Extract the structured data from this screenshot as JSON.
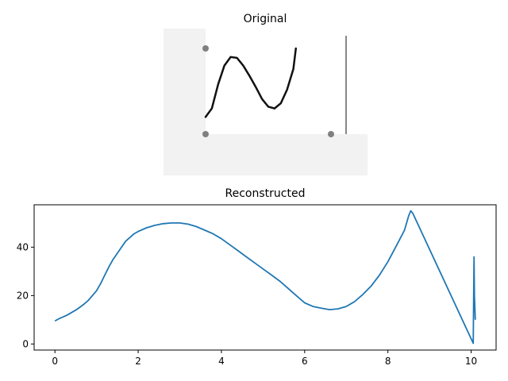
{
  "chart_data": [
    {
      "type": "image",
      "title": "Original",
      "points": [
        [
          0,
          0
        ],
        [
          1,
          0
        ],
        [
          0,
          1
        ]
      ],
      "point_color": "#808080",
      "curve": [
        [
          0.0,
          0.2
        ],
        [
          0.05,
          0.3
        ],
        [
          0.1,
          0.58
        ],
        [
          0.15,
          0.8
        ],
        [
          0.2,
          0.9
        ],
        [
          0.25,
          0.89
        ],
        [
          0.3,
          0.8
        ],
        [
          0.35,
          0.68
        ],
        [
          0.4,
          0.55
        ],
        [
          0.45,
          0.41
        ],
        [
          0.5,
          0.32
        ],
        [
          0.55,
          0.3
        ],
        [
          0.6,
          0.36
        ],
        [
          0.65,
          0.52
        ],
        [
          0.7,
          0.76
        ],
        [
          0.72,
          1.0
        ]
      ],
      "curve_color": "#111111",
      "background_color": "#f2f2f2"
    },
    {
      "type": "line",
      "title": "Reconstructed",
      "x": [
        0.0,
        0.1,
        0.2,
        0.3,
        0.4,
        0.5,
        0.6,
        0.7,
        0.8,
        0.9,
        1.0,
        1.1,
        1.2,
        1.3,
        1.4,
        1.5,
        1.6,
        1.7,
        1.8,
        1.9,
        2.0,
        2.2,
        2.4,
        2.6,
        2.8,
        3.0,
        3.2,
        3.4,
        3.6,
        3.8,
        4.0,
        4.2,
        4.4,
        4.6,
        4.8,
        5.0,
        5.2,
        5.4,
        5.6,
        5.8,
        6.0,
        6.2,
        6.4,
        6.6,
        6.8,
        7.0,
        7.2,
        7.4,
        7.6,
        7.8,
        8.0,
        8.2,
        8.4,
        8.5,
        8.55,
        8.6,
        10.05,
        10.07,
        10.08,
        10.1
      ],
      "y": [
        9.5,
        10.5,
        11.2,
        12.0,
        13.0,
        14.0,
        15.2,
        16.5,
        18.0,
        20.0,
        22.0,
        25.0,
        28.5,
        32.0,
        35.0,
        37.5,
        40.0,
        42.5,
        44.0,
        45.5,
        46.5,
        48.0,
        49.0,
        49.7,
        50.0,
        50.0,
        49.5,
        48.5,
        47.0,
        45.5,
        43.5,
        41.0,
        38.5,
        36.0,
        33.5,
        31.0,
        28.5,
        26.0,
        23.0,
        20.0,
        17.0,
        15.5,
        14.8,
        14.2,
        14.5,
        15.5,
        17.5,
        20.5,
        24.0,
        28.5,
        34.0,
        40.5,
        47.0,
        53.0,
        55.0,
        54.0,
        0.3,
        36.0,
        20.0,
        10.0
      ],
      "xlim": [
        -0.5,
        10.6
      ],
      "ylim": [
        -2.5,
        57.5
      ],
      "xticks": [
        0,
        2,
        4,
        6,
        8,
        10
      ],
      "yticks": [
        0,
        20,
        40
      ],
      "line_color": "#1f77b4"
    }
  ]
}
